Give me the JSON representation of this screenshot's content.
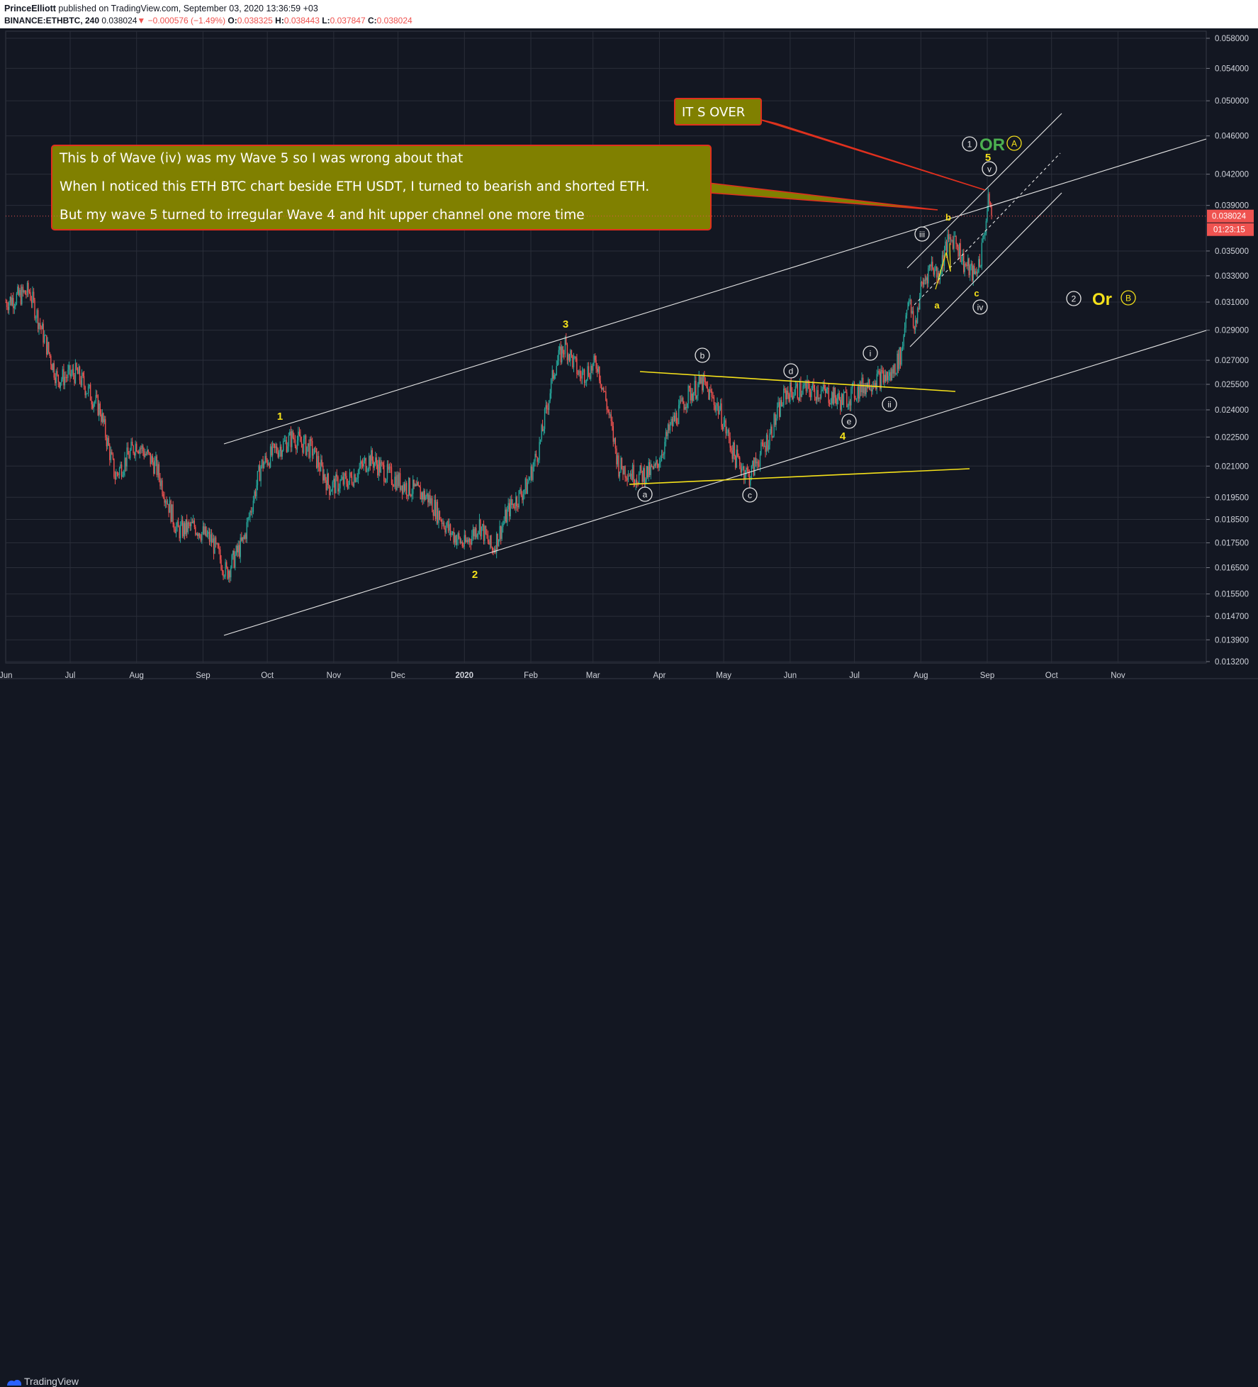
{
  "header": {
    "author": "PrinceElliott",
    "published": "published on TradingView.com, September 03, 2020 13:36:59 +03",
    "symbol": "BINANCE:ETHBTC, 240",
    "last": "0.038024",
    "change": "−0.000576 (−1.49%)",
    "o_label": "O:",
    "o_value": "0.038325",
    "h_label": "H:",
    "h_value": "0.038443",
    "l_label": "L:",
    "l_value": "0.037847",
    "c_label": "C:",
    "c_value": "0.038024"
  },
  "footer": {
    "brand": "TradingView"
  },
  "colors": {
    "background": "#131722",
    "grid": "#2a2e39",
    "up": "#26a69a",
    "down": "#ef5350",
    "yellow": "#f5e11a",
    "white": "#e6e6e6",
    "green": "#4caf50",
    "callout_fill": "#808000",
    "callout_border": "#e0301e",
    "price_tag": "#ef5350"
  },
  "chart_data": {
    "type": "candlestick",
    "title": "",
    "xlabel": "",
    "ylabel": "",
    "ylim": [
      0.0132,
      0.058
    ],
    "y_scale": "log",
    "grid": true,
    "y_ticks": [
      "0.058000",
      "0.054000",
      "0.050000",
      "0.046000",
      "0.042000",
      "0.039000",
      "0.035000",
      "0.033000",
      "0.031000",
      "0.029000",
      "0.027000",
      "0.025500",
      "0.024000",
      "0.022500",
      "0.021000",
      "0.019500",
      "0.018500",
      "0.017500",
      "0.016500",
      "0.015500",
      "0.014700",
      "0.013900",
      "0.013200"
    ],
    "x_ticks": [
      {
        "label": "Jun",
        "date": "2019-06-01"
      },
      {
        "label": "Jul",
        "date": "2019-07-01"
      },
      {
        "label": "Aug",
        "date": "2019-08-01"
      },
      {
        "label": "Sep",
        "date": "2019-09-01"
      },
      {
        "label": "Oct",
        "date": "2019-10-01"
      },
      {
        "label": "Nov",
        "date": "2019-11-01"
      },
      {
        "label": "Dec",
        "date": "2019-12-01"
      },
      {
        "label": "2020",
        "date": "2020-01-01"
      },
      {
        "label": "Feb",
        "date": "2020-02-01"
      },
      {
        "label": "Mar",
        "date": "2020-03-01"
      },
      {
        "label": "Apr",
        "date": "2020-04-01"
      },
      {
        "label": "May",
        "date": "2020-05-01"
      },
      {
        "label": "Jun",
        "date": "2020-06-01"
      },
      {
        "label": "Jul",
        "date": "2020-07-01"
      },
      {
        "label": "Aug",
        "date": "2020-08-01"
      },
      {
        "label": "Sep",
        "date": "2020-09-01"
      },
      {
        "label": "Oct",
        "date": "2020-10-01"
      },
      {
        "label": "Nov",
        "date": "2020-11-01"
      }
    ],
    "price_path": [
      [
        "2019-06-01",
        0.031
      ],
      [
        "2019-06-12",
        0.0318
      ],
      [
        "2019-06-25",
        0.0258
      ],
      [
        "2019-07-04",
        0.0262
      ],
      [
        "2019-07-15",
        0.024
      ],
      [
        "2019-07-22",
        0.0205
      ],
      [
        "2019-08-01",
        0.0222
      ],
      [
        "2019-08-10",
        0.021
      ],
      [
        "2019-08-20",
        0.018
      ],
      [
        "2019-08-28",
        0.0182
      ],
      [
        "2019-09-05",
        0.0176
      ],
      [
        "2019-09-12",
        0.0163
      ],
      [
        "2019-09-20",
        0.0176
      ],
      [
        "2019-09-28",
        0.021
      ],
      [
        "2019-10-05",
        0.0218
      ],
      [
        "2019-10-13",
        0.0225
      ],
      [
        "2019-10-22",
        0.0218
      ],
      [
        "2019-10-30",
        0.02
      ],
      [
        "2019-11-08",
        0.0203
      ],
      [
        "2019-11-18",
        0.0214
      ],
      [
        "2019-11-26",
        0.0206
      ],
      [
        "2019-12-05",
        0.02
      ],
      [
        "2019-12-15",
        0.0195
      ],
      [
        "2019-12-25",
        0.018
      ],
      [
        "2020-01-01",
        0.0174
      ],
      [
        "2020-01-08",
        0.0183
      ],
      [
        "2020-01-14",
        0.0172
      ],
      [
        "2020-01-22",
        0.019
      ],
      [
        "2020-01-30",
        0.02
      ],
      [
        "2020-02-05",
        0.022
      ],
      [
        "2020-02-12",
        0.0265
      ],
      [
        "2020-02-17",
        0.028
      ],
      [
        "2020-02-24",
        0.026
      ],
      [
        "2020-03-03",
        0.0268
      ],
      [
        "2020-03-08",
        0.024
      ],
      [
        "2020-03-13",
        0.021
      ],
      [
        "2020-03-22",
        0.0205
      ],
      [
        "2020-03-30",
        0.0208
      ],
      [
        "2020-04-06",
        0.023
      ],
      [
        "2020-04-14",
        0.0248
      ],
      [
        "2020-04-21",
        0.0256
      ],
      [
        "2020-04-29",
        0.024
      ],
      [
        "2020-05-06",
        0.0215
      ],
      [
        "2020-05-13",
        0.0205
      ],
      [
        "2020-05-22",
        0.0225
      ],
      [
        "2020-05-30",
        0.025
      ],
      [
        "2020-06-08",
        0.0252
      ],
      [
        "2020-06-17",
        0.025
      ],
      [
        "2020-06-25",
        0.0245
      ],
      [
        "2020-07-03",
        0.0252
      ],
      [
        "2020-07-10",
        0.0258
      ],
      [
        "2020-07-18",
        0.026
      ],
      [
        "2020-07-23",
        0.0275
      ],
      [
        "2020-07-26",
        0.0315
      ],
      [
        "2020-07-29",
        0.029
      ],
      [
        "2020-08-01",
        0.032
      ],
      [
        "2020-08-06",
        0.034
      ],
      [
        "2020-08-09",
        0.033
      ],
      [
        "2020-08-13",
        0.0355
      ],
      [
        "2020-08-17",
        0.0362
      ],
      [
        "2020-08-21",
        0.034
      ],
      [
        "2020-08-26",
        0.033
      ],
      [
        "2020-08-29",
        0.0345
      ],
      [
        "2020-09-01",
        0.0385
      ],
      [
        "2020-09-02",
        0.0398
      ],
      [
        "2020-09-03",
        0.038
      ]
    ],
    "last_price": "0.038024",
    "countdown": "01:23:15",
    "annotations": {
      "callout_main": [
        "This b of Wave (iv) was my Wave 5 so I was wrong about that",
        "When I noticed this ETH BTC chart beside ETH USDT, I turned to bearish and shorted ETH.",
        "But my wave 5 turned to irregular Wave 4 and hit upper channel one more time"
      ],
      "callout_over": "IT S OVER",
      "wave_labels": {
        "w1": "1",
        "w2": "2",
        "w3": "3",
        "w4": "4",
        "w5": "5",
        "ca": "a",
        "cb": "b",
        "cc": "c",
        "cd": "d",
        "ce": "e",
        "si": "i",
        "sii": "ii",
        "siii": "iii",
        "siv": "iv",
        "sv": "v",
        "sa": "a",
        "sb": "b",
        "sc": "c"
      },
      "alt1_circle": "1",
      "alt1_or": "OR",
      "alt1_a": "A",
      "alt2_circle": "2",
      "alt2_or": "Or",
      "alt2_b": "B"
    }
  }
}
